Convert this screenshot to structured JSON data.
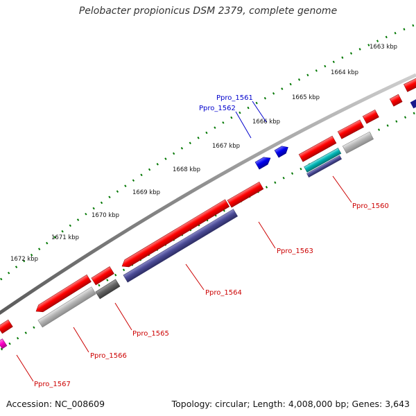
{
  "title": "Pelobacter propionicus DSM 2379, complete genome",
  "footer": {
    "accession": "Accession: NC_008609",
    "summary": "Topology: circular; Length: 4,008,000 bp; Genes: 3,643"
  },
  "scale_labels": [
    "1663 kbp",
    "1664 kbp",
    "1665 kbp",
    "1666 kbp",
    "1667 kbp",
    "1668 kbp",
    "1669 kbp",
    "1670 kbp",
    "1671 kbp",
    "1672 kbp"
  ],
  "gene_labels": {
    "ppro_1561": "Ppro_1561",
    "ppro_1562": "Ppro_1562",
    "ppro_1560": "Ppro_1560",
    "ppro_1563": "Ppro_1563",
    "ppro_1564": "Ppro_1564",
    "ppro_1565": "Ppro_1565",
    "ppro_1566": "Ppro_1566",
    "ppro_1567": "Ppro_1567"
  },
  "colors": {
    "cds": "#ff0000",
    "blue_feature": "#0000ee",
    "cog_purple": "#4b4b96",
    "cog_gray": "#b4b4b4",
    "cog_dark_gray": "#646464",
    "cog_cyan": "#00b4b4",
    "tick_green": "#007700",
    "backbone": "#888888",
    "label_red": "#cc0000",
    "label_blue": "#0000cc"
  }
}
